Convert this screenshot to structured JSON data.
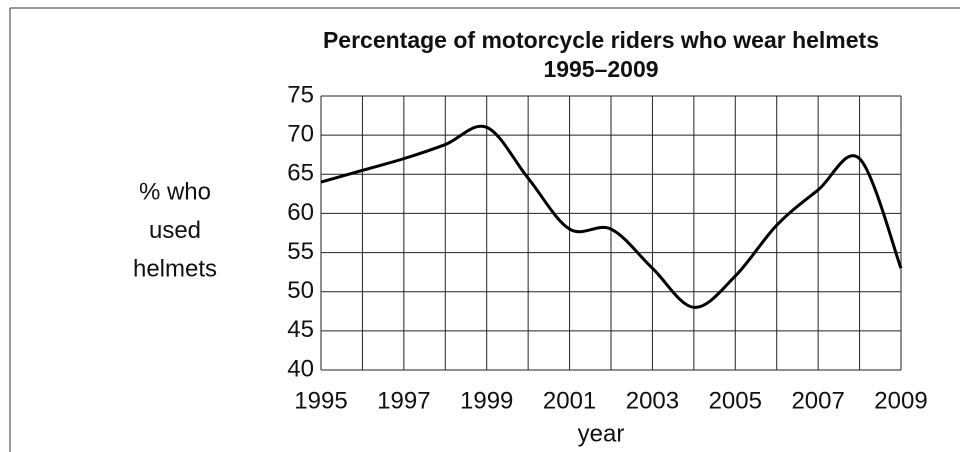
{
  "chart_data": {
    "type": "line",
    "title": "Percentage of motorcycle riders who wear helmets",
    "subtitle": "1995–2009",
    "ylabel": [
      "% who",
      "used",
      "helmets"
    ],
    "xlabel": "year",
    "x": [
      1995,
      1996,
      1997,
      1998,
      1999,
      2000,
      2001,
      2002,
      2003,
      2004,
      2005,
      2006,
      2007,
      2008,
      2009
    ],
    "series": [
      {
        "name": "helmets",
        "color": "#000000",
        "values": [
          64,
          65.5,
          67,
          68.8,
          71,
          64.5,
          58,
          58,
          53,
          48,
          52,
          58.5,
          63,
          67,
          53
        ]
      }
    ],
    "xlim": [
      1995,
      2009
    ],
    "xticks": [
      1995,
      1997,
      1999,
      2001,
      2003,
      2005,
      2007,
      2009
    ],
    "xgrid": [
      1995,
      1996,
      1997,
      1998,
      1999,
      2000,
      2001,
      2002,
      2003,
      2004,
      2005,
      2006,
      2007,
      2008,
      2009
    ],
    "ylim": [
      40,
      75
    ],
    "yticks": [
      40,
      45,
      50,
      55,
      60,
      65,
      70,
      75
    ],
    "grid": true
  }
}
